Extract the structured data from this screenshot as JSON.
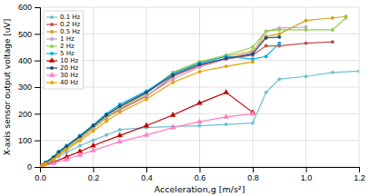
{
  "chart_data": {
    "type": "line",
    "xlabel": "Acceleration,g  [m/s²]",
    "ylabel": "X-axis sensor output voltage [uV]",
    "xlim": [
      0,
      1.2
    ],
    "ylim": [
      0,
      600
    ],
    "xticks": [
      {
        "value": 0,
        "label": "0.0"
      },
      0.2,
      0.4,
      0.6,
      0.8,
      {
        "value": 1.0,
        "label": "1.0"
      },
      1.2
    ],
    "yticks": [
      0,
      100,
      200,
      300,
      400,
      500,
      600
    ],
    "grid": true,
    "legend": "upper left",
    "series": [
      {
        "name": "0.1 Hz",
        "color": "#70c0d0",
        "marker": "circle",
        "x": [
          0,
          0.01,
          0.02,
          0.05,
          0.07,
          0.1,
          0.15,
          0.2,
          0.25,
          0.3,
          0.4,
          0.5,
          0.6,
          0.7,
          0.8,
          0.85,
          0.9,
          1.0,
          1.1,
          1.2
        ],
        "values": [
          0,
          5,
          10,
          25,
          40,
          55,
          80,
          100,
          120,
          140,
          148,
          152,
          155,
          160,
          165,
          280,
          330,
          340,
          355,
          360
        ]
      },
      {
        "name": "0.2 Hz",
        "color": "#c0504d",
        "marker": "circle",
        "x": [
          0,
          0.01,
          0.02,
          0.05,
          0.07,
          0.1,
          0.15,
          0.2,
          0.25,
          0.3,
          0.4,
          0.5,
          0.6,
          0.7,
          0.8,
          0.85,
          0.9,
          1.0,
          1.1
        ],
        "values": [
          0,
          8,
          15,
          35,
          55,
          75,
          110,
          150,
          185,
          215,
          265,
          340,
          380,
          405,
          420,
          455,
          455,
          465,
          470
        ]
      },
      {
        "name": "0.5 Hz",
        "color": "#d4a017",
        "marker": "circle",
        "x": [
          0,
          0.01,
          0.02,
          0.05,
          0.07,
          0.1,
          0.15,
          0.2,
          0.25,
          0.3,
          0.4,
          0.5,
          0.6,
          0.7,
          0.8,
          0.85,
          0.9,
          1.0,
          1.1,
          1.15
        ],
        "values": [
          0,
          6,
          12,
          30,
          48,
          70,
          105,
          145,
          185,
          220,
          275,
          355,
          395,
          415,
          435,
          490,
          500,
          550,
          560,
          565
        ]
      },
      {
        "name": "1 Hz",
        "color": "#c0a0c0",
        "marker": "circle",
        "x": [
          0,
          0.01,
          0.02,
          0.05,
          0.07,
          0.1,
          0.15,
          0.2,
          0.25,
          0.3,
          0.4,
          0.5,
          0.6,
          0.7,
          0.8,
          0.85,
          0.9,
          1.0
        ],
        "values": [
          0,
          7,
          14,
          32,
          50,
          72,
          108,
          148,
          188,
          218,
          268,
          330,
          375,
          405,
          428,
          510,
          522,
          525
        ]
      },
      {
        "name": "2 Hz",
        "color": "#92d050",
        "marker": "circle",
        "x": [
          0,
          0.01,
          0.02,
          0.05,
          0.07,
          0.1,
          0.15,
          0.2,
          0.25,
          0.3,
          0.4,
          0.5,
          0.6,
          0.7,
          0.8,
          0.85,
          0.9,
          1.0,
          1.1,
          1.15
        ],
        "values": [
          0,
          7,
          15,
          33,
          52,
          74,
          112,
          152,
          192,
          225,
          278,
          355,
          395,
          420,
          450,
          510,
          515,
          515,
          515,
          560
        ]
      },
      {
        "name": "5 Hz",
        "color": "#00b0f0",
        "marker": "circle",
        "x": [
          0,
          0.01,
          0.02,
          0.05,
          0.07,
          0.1,
          0.15,
          0.2,
          0.25,
          0.3,
          0.4,
          0.5,
          0.6,
          0.7,
          0.8,
          0.85,
          0.9
        ],
        "values": [
          0,
          8,
          18,
          38,
          58,
          80,
          118,
          158,
          200,
          235,
          285,
          350,
          390,
          415,
          405,
          415,
          465
        ]
      },
      {
        "name": "10 Hz",
        "color": "#c00000",
        "marker": "triangle",
        "x": [
          0,
          0.05,
          0.1,
          0.15,
          0.2,
          0.3,
          0.4,
          0.5,
          0.6,
          0.7,
          0.8
        ],
        "values": [
          0,
          18,
          38,
          58,
          80,
          118,
          155,
          195,
          240,
          280,
          205
        ]
      },
      {
        "name": "20 Hz",
        "color": "#1f497d",
        "marker": "circle",
        "x": [
          0,
          0.01,
          0.02,
          0.05,
          0.07,
          0.1,
          0.15,
          0.2,
          0.25,
          0.3,
          0.4,
          0.5,
          0.6,
          0.7,
          0.8,
          0.85,
          0.9
        ],
        "values": [
          0,
          7,
          15,
          35,
          55,
          78,
          115,
          155,
          195,
          228,
          280,
          345,
          385,
          408,
          425,
          485,
          488
        ]
      },
      {
        "name": "30 Hz",
        "color": "#ff7fbf",
        "marker": "triangle",
        "x": [
          0,
          0.05,
          0.1,
          0.15,
          0.2,
          0.3,
          0.4,
          0.5,
          0.6,
          0.7,
          0.8
        ],
        "values": [
          0,
          14,
          28,
          45,
          62,
          95,
          120,
          148,
          170,
          188,
          200
        ]
      },
      {
        "name": "40 Hz",
        "color": "#e8a000",
        "marker": "circle",
        "x": [
          0,
          0.01,
          0.02,
          0.05,
          0.07,
          0.1,
          0.15,
          0.2,
          0.25,
          0.3,
          0.4,
          0.5,
          0.6,
          0.7,
          0.8
        ],
        "values": [
          0,
          6,
          12,
          28,
          45,
          65,
          98,
          135,
          172,
          205,
          255,
          318,
          358,
          378,
          395
        ]
      }
    ]
  }
}
